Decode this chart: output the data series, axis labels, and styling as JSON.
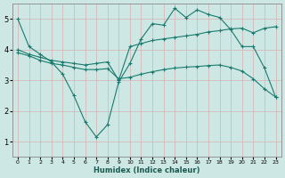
{
  "xlabel": "Humidex (Indice chaleur)",
  "bg_color": "#cde8e4",
  "grid_color": "#b0d8d2",
  "line_color": "#1a7a6e",
  "xlim": [
    -0.5,
    23.5
  ],
  "ylim": [
    0.5,
    5.5
  ],
  "xticks": [
    0,
    1,
    2,
    3,
    4,
    5,
    6,
    7,
    8,
    9,
    10,
    11,
    12,
    13,
    14,
    15,
    16,
    17,
    18,
    19,
    20,
    21,
    22,
    23
  ],
  "yticks": [
    1,
    2,
    3,
    4,
    5
  ],
  "line1_x": [
    0,
    1,
    2,
    3,
    4,
    5,
    6,
    7,
    8,
    9,
    10,
    11,
    12,
    13,
    14,
    15,
    16,
    17,
    18,
    19,
    20,
    21,
    22,
    23
  ],
  "line1_y": [
    5.0,
    4.1,
    3.85,
    3.6,
    3.2,
    2.5,
    1.65,
    1.15,
    1.55,
    2.95,
    3.55,
    4.35,
    4.85,
    4.8,
    5.35,
    5.05,
    5.3,
    5.15,
    5.05,
    4.65,
    4.1,
    4.1,
    3.4,
    2.45
  ],
  "line2_x": [
    0,
    1,
    2,
    3,
    4,
    5,
    6,
    7,
    8,
    9,
    10,
    11,
    12,
    13,
    14,
    15,
    16,
    17,
    18,
    19,
    20,
    21,
    22,
    23
  ],
  "line2_y": [
    4.0,
    3.85,
    3.75,
    3.65,
    3.6,
    3.55,
    3.5,
    3.55,
    3.6,
    3.0,
    4.1,
    4.2,
    4.3,
    4.35,
    4.4,
    4.45,
    4.5,
    4.58,
    4.62,
    4.68,
    4.7,
    4.55,
    4.7,
    4.75
  ],
  "line3_x": [
    0,
    1,
    2,
    3,
    4,
    5,
    6,
    7,
    8,
    9,
    10,
    11,
    12,
    13,
    14,
    15,
    16,
    17,
    18,
    19,
    20,
    21,
    22,
    23
  ],
  "line3_y": [
    3.9,
    3.8,
    3.65,
    3.55,
    3.5,
    3.42,
    3.35,
    3.35,
    3.38,
    3.05,
    3.1,
    3.2,
    3.28,
    3.35,
    3.4,
    3.43,
    3.45,
    3.48,
    3.5,
    3.42,
    3.3,
    3.05,
    2.72,
    2.45
  ]
}
